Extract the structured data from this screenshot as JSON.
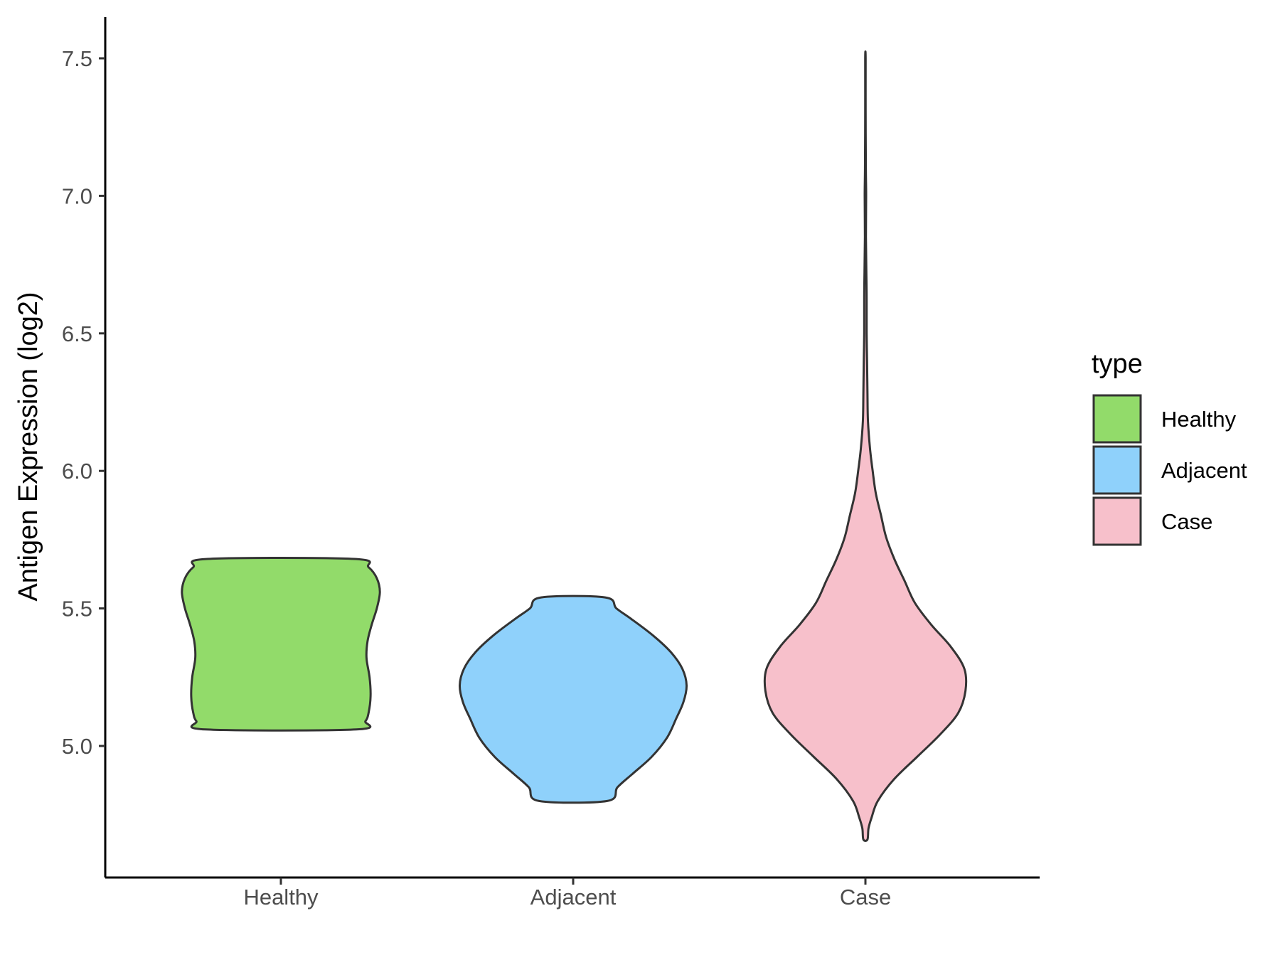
{
  "chart_data": {
    "type": "violin",
    "title": "",
    "xlabel": "",
    "ylabel": "Antigen Expression (log2)",
    "ylim": [
      4.62,
      7.65
    ],
    "yticks": [
      "5.0",
      "5.5",
      "6.0",
      "6.5",
      "7.0",
      "7.5"
    ],
    "ytick_values": [
      5.0,
      5.5,
      6.0,
      6.5,
      7.0,
      7.5
    ],
    "categories": [
      "Healthy",
      "Adjacent",
      "Case"
    ],
    "grid": false,
    "legend": {
      "title": "type",
      "position": "right",
      "entries": [
        "Healthy",
        "Adjacent",
        "Case"
      ]
    },
    "series": [
      {
        "name": "Healthy",
        "color": "#92db6a",
        "min": 5.06,
        "max": 5.68,
        "density": [
          [
            5.06,
            0.73
          ],
          [
            5.09,
            0.82
          ],
          [
            5.12,
            0.85
          ],
          [
            5.18,
            0.87
          ],
          [
            5.25,
            0.86
          ],
          [
            5.32,
            0.83
          ],
          [
            5.38,
            0.84
          ],
          [
            5.44,
            0.88
          ],
          [
            5.5,
            0.93
          ],
          [
            5.56,
            0.96
          ],
          [
            5.61,
            0.93
          ],
          [
            5.65,
            0.85
          ],
          [
            5.68,
            0.71
          ]
        ]
      },
      {
        "name": "Adjacent",
        "color": "#8fd1fb",
        "min": 4.8,
        "max": 5.54,
        "density": [
          [
            4.8,
            0.33
          ],
          [
            4.85,
            0.43
          ],
          [
            4.9,
            0.58
          ],
          [
            4.96,
            0.76
          ],
          [
            5.03,
            0.91
          ],
          [
            5.1,
            1.0
          ],
          [
            5.16,
            1.07
          ],
          [
            5.22,
            1.1
          ],
          [
            5.28,
            1.06
          ],
          [
            5.34,
            0.95
          ],
          [
            5.4,
            0.78
          ],
          [
            5.46,
            0.57
          ],
          [
            5.5,
            0.42
          ],
          [
            5.54,
            0.31
          ]
        ]
      },
      {
        "name": "Case",
        "color": "#f7c0cb",
        "min": 4.66,
        "max": 7.5,
        "density": [
          [
            4.66,
            0.02
          ],
          [
            4.7,
            0.03
          ],
          [
            4.74,
            0.06
          ],
          [
            4.8,
            0.12
          ],
          [
            4.88,
            0.28
          ],
          [
            4.96,
            0.5
          ],
          [
            5.04,
            0.72
          ],
          [
            5.12,
            0.9
          ],
          [
            5.2,
            0.97
          ],
          [
            5.28,
            0.96
          ],
          [
            5.36,
            0.83
          ],
          [
            5.44,
            0.64
          ],
          [
            5.52,
            0.48
          ],
          [
            5.6,
            0.38
          ],
          [
            5.68,
            0.28
          ],
          [
            5.76,
            0.2
          ],
          [
            5.84,
            0.15
          ],
          [
            5.92,
            0.1
          ],
          [
            6.0,
            0.07
          ],
          [
            6.08,
            0.045
          ],
          [
            6.18,
            0.025
          ],
          [
            6.28,
            0.02
          ],
          [
            6.4,
            0.016
          ],
          [
            6.5,
            0.012
          ],
          [
            6.62,
            0.012
          ],
          [
            6.72,
            0.009
          ],
          [
            6.85,
            0.005
          ],
          [
            7.0,
            0.007
          ],
          [
            7.1,
            0.004
          ],
          [
            7.3,
            0.002
          ],
          [
            7.5,
            0.002
          ]
        ]
      }
    ]
  }
}
